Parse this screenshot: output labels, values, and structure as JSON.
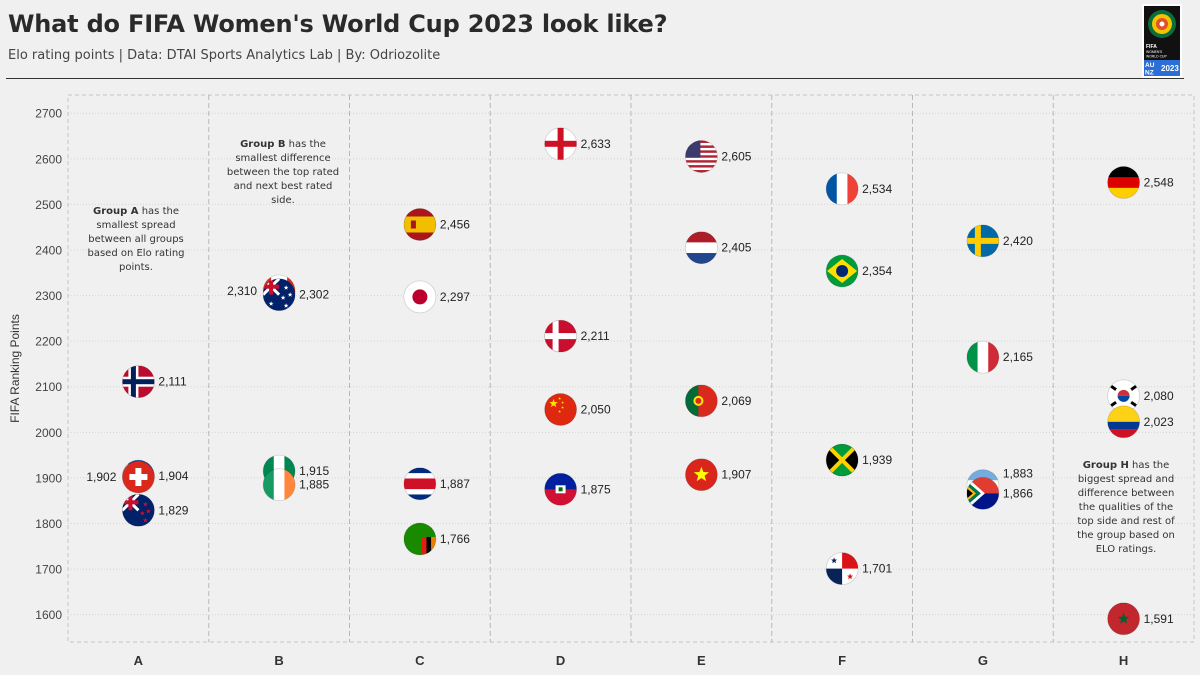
{
  "header": {
    "title": "What do FIFA Women's World Cup 2023 look like?",
    "subtitle": "Elo rating points | Data: DTAI Sports Analytics Lab | By: Odriozolite"
  },
  "logo": {
    "icon": "fifa-womens-world-cup-2023-logo",
    "lines": [
      "FIFA",
      "WOMEN'S",
      "WORLD CUP",
      "AU",
      "NZ",
      "2023"
    ],
    "colors": [
      "#0a6e3c",
      "#f2c300",
      "#e0502b",
      "#2b6fd6",
      "#111111"
    ]
  },
  "annotations": {
    "a": {
      "bold": "Group A",
      "rest": " has the smallest spread between all groups based on Elo rating points."
    },
    "b": {
      "bold": "Group B",
      "rest": " has the smallest difference between the top rated and next best rated side."
    },
    "h": {
      "bold": "Group H",
      "rest": " has the biggest spread and difference between the qualities of the top side and rest of the group based on ELO ratings."
    }
  },
  "chart_data": {
    "type": "scatter",
    "ylabel": "FIFA Ranking Points",
    "xlabel": "",
    "ylim": [
      1540,
      2740
    ],
    "yticks": [
      1600,
      1700,
      1800,
      1900,
      2000,
      2100,
      2200,
      2300,
      2400,
      2500,
      2600,
      2700
    ],
    "categories": [
      "A",
      "B",
      "C",
      "D",
      "E",
      "F",
      "G",
      "H"
    ],
    "grid": true,
    "series": [
      {
        "group": "A",
        "points": [
          {
            "flag": "norway",
            "value": 2111,
            "label": "2,111"
          },
          {
            "flag": "philippines",
            "value": 1904,
            "label": "1,904"
          },
          {
            "flag": "switzerland",
            "value": 1902,
            "label": "1,902",
            "label_side": "left"
          },
          {
            "flag": "new-zealand",
            "value": 1829,
            "label": "1,829"
          }
        ]
      },
      {
        "group": "B",
        "points": [
          {
            "flag": "canada",
            "value": 2310,
            "label": "2,310",
            "label_side": "left"
          },
          {
            "flag": "australia",
            "value": 2302,
            "label": "2,302"
          },
          {
            "flag": "nigeria",
            "value": 1915,
            "label": "1,915"
          },
          {
            "flag": "ireland",
            "value": 1885,
            "label": "1,885"
          }
        ]
      },
      {
        "group": "C",
        "points": [
          {
            "flag": "spain",
            "value": 2456,
            "label": "2,456"
          },
          {
            "flag": "japan",
            "value": 2297,
            "label": "2,297"
          },
          {
            "flag": "costa-rica",
            "value": 1887,
            "label": "1,887"
          },
          {
            "flag": "zambia",
            "value": 1766,
            "label": "1,766"
          }
        ]
      },
      {
        "group": "D",
        "points": [
          {
            "flag": "england",
            "value": 2633,
            "label": "2,633"
          },
          {
            "flag": "denmark",
            "value": 2211,
            "label": "2,211"
          },
          {
            "flag": "china",
            "value": 2050,
            "label": "2,050"
          },
          {
            "flag": "haiti",
            "value": 1875,
            "label": "1,875"
          }
        ]
      },
      {
        "group": "E",
        "points": [
          {
            "flag": "usa",
            "value": 2605,
            "label": "2,605"
          },
          {
            "flag": "netherlands",
            "value": 2405,
            "label": "2,405"
          },
          {
            "flag": "portugal",
            "value": 2069,
            "label": "2,069"
          },
          {
            "flag": "vietnam",
            "value": 1907,
            "label": "1,907"
          }
        ]
      },
      {
        "group": "F",
        "points": [
          {
            "flag": "france",
            "value": 2534,
            "label": "2,534"
          },
          {
            "flag": "brazil",
            "value": 2354,
            "label": "2,354"
          },
          {
            "flag": "jamaica",
            "value": 1939,
            "label": "1,939"
          },
          {
            "flag": "panama",
            "value": 1701,
            "label": "1,701"
          }
        ]
      },
      {
        "group": "G",
        "points": [
          {
            "flag": "sweden",
            "value": 2420,
            "label": "2,420"
          },
          {
            "flag": "italy",
            "value": 2165,
            "label": "2,165"
          },
          {
            "flag": "argentina",
            "value": 1883,
            "label": "1,883",
            "label_side": "above"
          },
          {
            "flag": "south-africa",
            "value": 1866,
            "label": "1,866"
          }
        ]
      },
      {
        "group": "H",
        "points": [
          {
            "flag": "germany",
            "value": 2548,
            "label": "2,548"
          },
          {
            "flag": "south-korea",
            "value": 2080,
            "label": "2,080"
          },
          {
            "flag": "colombia",
            "value": 2023,
            "label": "2,023"
          },
          {
            "flag": "morocco",
            "value": 1591,
            "label": "1,591"
          }
        ]
      }
    ]
  }
}
